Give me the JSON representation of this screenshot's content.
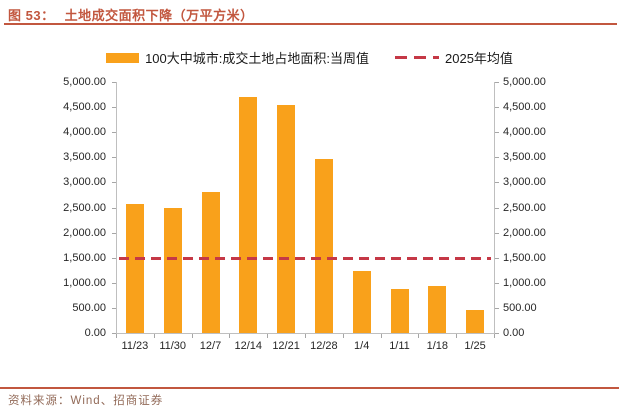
{
  "title": {
    "prefix": "图 53：",
    "text": "土地成交面积下降（万平方米）"
  },
  "legend": {
    "bar_series": {
      "label": "100大中城市:成交土地占地面积:当周值"
    },
    "average_line": {
      "label": "2025年均值"
    }
  },
  "colors": {
    "bar": "#F9A11B",
    "average_line": "#C53846",
    "accent_rule": "#C2573F",
    "axis_line": "#BFBFBF",
    "footer_text": "#926A58"
  },
  "footer": {
    "source_label": "资料来源：Wind、招商证券"
  },
  "chart_data": {
    "type": "bar",
    "title": "土地成交面积下降（万平方米）",
    "categories": [
      "11/23",
      "11/30",
      "12/7",
      "12/14",
      "12/21",
      "12/28",
      "1/4",
      "1/11",
      "1/18",
      "1/25"
    ],
    "series": [
      {
        "name": "100大中城市:成交土地占地面积:当周值",
        "values": [
          2560,
          2500,
          2810,
          4700,
          4540,
          3470,
          1240,
          875,
          940,
          460
        ]
      }
    ],
    "average_line": {
      "name": "2025年均值",
      "value": 1480
    },
    "xlabel": "",
    "ylabel": "",
    "ylim": [
      0,
      5000
    ],
    "ytick_step": 500,
    "ytick_format": "thousands-2dp",
    "dual_axis": true,
    "grid": false,
    "legend_position": "top"
  }
}
